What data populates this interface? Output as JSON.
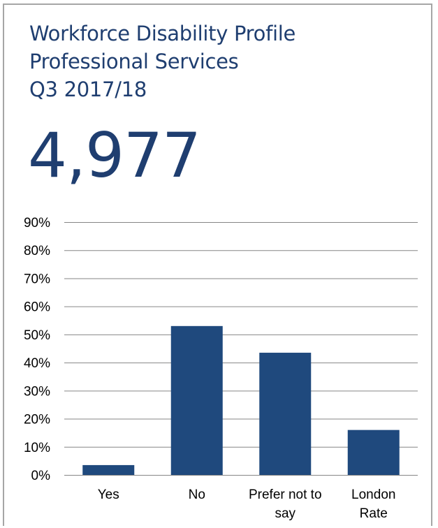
{
  "title": {
    "line1": "Workforce Disability Profile",
    "line2": "Professional Services",
    "line3": "Q3 2017/18"
  },
  "headcount": "4,977",
  "colors": {
    "title": "#1f3e70",
    "bar": "#1f497d",
    "grid": "#868686",
    "border": "#a6a6a6"
  },
  "chart_data": {
    "type": "bar",
    "categories": [
      [
        "Yes"
      ],
      [
        "No"
      ],
      [
        "Prefer not to",
        "say"
      ],
      [
        "London",
        "Rate"
      ]
    ],
    "values": [
      3.5,
      53,
      43.5,
      16
    ],
    "ylim": [
      0,
      90
    ],
    "yticks": [
      0,
      10,
      20,
      30,
      40,
      50,
      60,
      70,
      80,
      90
    ],
    "ytick_labels": [
      "0%",
      "10%",
      "20%",
      "30%",
      "40%",
      "50%",
      "60%",
      "70%",
      "80%",
      "90%"
    ],
    "grid": true,
    "legend": "none",
    "xlabel": "",
    "ylabel": ""
  }
}
